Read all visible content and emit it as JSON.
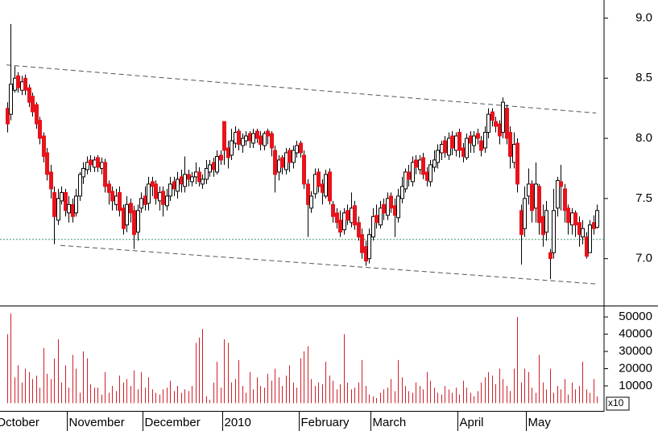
{
  "chart_data": [
    {
      "type": "candlestick",
      "open": [
        8.25,
        8.2,
        8.4,
        8.52,
        8.4,
        8.5,
        8.42,
        8.35,
        8.28,
        8.15,
        8.02,
        7.88,
        7.72,
        7.55,
        7.32,
        7.48,
        7.55,
        7.38,
        7.45,
        7.38,
        7.52,
        7.68,
        7.74,
        7.82,
        7.76,
        7.84,
        7.75,
        7.8,
        7.62,
        7.56,
        7.45,
        7.55,
        7.42,
        7.28,
        7.46,
        7.4,
        7.22,
        7.42,
        7.52,
        7.46,
        7.64,
        7.62,
        7.48,
        7.56,
        7.44,
        7.52,
        7.64,
        7.56,
        7.68,
        7.6,
        7.7,
        7.64,
        7.68,
        7.72,
        7.62,
        7.66,
        7.72,
        7.8,
        7.72,
        7.86,
        8.14,
        7.92,
        7.86,
        7.96,
        8.06,
        7.94,
        7.98,
        8.04,
        7.96,
        8.06,
        8.02,
        7.94,
        8.06,
        8.04,
        7.9,
        7.72,
        7.84,
        7.74,
        7.9,
        7.8,
        7.88,
        7.96,
        7.86,
        7.62,
        7.42,
        7.54,
        7.72,
        7.62,
        7.52,
        7.72,
        7.45,
        7.38,
        7.32,
        7.24,
        7.4,
        7.3,
        7.44,
        7.3,
        7.2,
        7.1,
        7.0,
        7.18,
        7.36,
        7.28,
        7.45,
        7.36,
        7.52,
        7.44,
        7.34,
        7.5,
        7.58,
        7.72,
        7.64,
        7.82,
        7.74,
        7.84,
        7.72,
        7.64,
        7.76,
        7.8,
        7.88,
        7.98,
        7.86,
        8.02,
        7.9,
        8.05,
        7.92,
        7.84,
        8.02,
        7.94,
        8.04,
        7.98,
        7.92,
        8.05,
        8.22,
        8.14,
        8.12,
        8.05,
        8.25,
        8.05,
        7.8,
        7.96,
        7.4,
        7.25,
        7.52,
        7.62,
        7.42,
        7.6,
        7.35,
        7.22,
        7.05,
        7.05,
        7.42,
        7.64,
        7.58,
        7.42,
        7.28,
        7.38,
        7.3,
        7.18,
        7.18,
        7.05,
        7.3,
        7.26
      ],
      "high": [
        8.3,
        8.95,
        8.6,
        8.55,
        8.52,
        8.53,
        8.45,
        8.38,
        8.3,
        8.18,
        8.05,
        7.92,
        7.78,
        7.6,
        7.58,
        7.6,
        7.58,
        7.52,
        7.5,
        7.58,
        7.72,
        7.8,
        7.85,
        7.86,
        7.85,
        7.86,
        7.84,
        7.83,
        7.65,
        7.6,
        7.58,
        7.6,
        7.45,
        7.52,
        7.5,
        7.44,
        7.45,
        7.55,
        7.6,
        7.68,
        7.68,
        7.65,
        7.6,
        7.6,
        7.58,
        7.68,
        7.68,
        7.72,
        7.74,
        7.85,
        7.74,
        7.72,
        7.8,
        7.76,
        7.7,
        7.82,
        7.82,
        7.84,
        7.9,
        7.9,
        8.14,
        7.98,
        8.08,
        8.1,
        8.08,
        8.04,
        8.06,
        8.06,
        8.08,
        8.08,
        8.06,
        8.06,
        8.08,
        8.06,
        7.94,
        7.86,
        7.86,
        7.92,
        7.92,
        7.94,
        7.98,
        7.98,
        7.9,
        7.66,
        7.56,
        7.75,
        7.75,
        7.66,
        7.74,
        7.75,
        7.48,
        7.42,
        7.4,
        7.42,
        7.45,
        7.55,
        7.48,
        7.35,
        7.25,
        7.15,
        7.25,
        7.42,
        7.45,
        7.48,
        7.5,
        7.55,
        7.55,
        7.5,
        7.58,
        7.68,
        7.75,
        7.78,
        7.85,
        7.86,
        7.86,
        7.88,
        7.76,
        7.82,
        7.9,
        7.95,
        7.98,
        8.02,
        8.05,
        8.06,
        8.05,
        8.08,
        7.96,
        8.04,
        8.06,
        8.06,
        8.08,
        8.02,
        8.1,
        8.25,
        8.25,
        8.18,
        8.15,
        8.34,
        8.28,
        8.1,
        8.05,
        8.0,
        7.45,
        7.6,
        7.75,
        7.65,
        7.8,
        7.62,
        7.45,
        7.48,
        7.08,
        7.58,
        7.68,
        7.78,
        7.62,
        7.45,
        7.42,
        7.4,
        7.35,
        7.32,
        7.22,
        7.32,
        7.36,
        7.45
      ],
      "low": [
        8.05,
        8.15,
        8.38,
        8.38,
        8.36,
        8.36,
        8.26,
        8.18,
        8.08,
        7.95,
        7.8,
        7.65,
        7.5,
        7.12,
        7.28,
        7.45,
        7.35,
        7.3,
        7.3,
        7.35,
        7.48,
        7.62,
        7.7,
        7.72,
        7.72,
        7.72,
        7.7,
        7.55,
        7.45,
        7.4,
        7.4,
        7.35,
        7.2,
        7.22,
        7.3,
        7.08,
        7.15,
        7.38,
        7.4,
        7.4,
        7.52,
        7.45,
        7.4,
        7.35,
        7.4,
        7.48,
        7.52,
        7.5,
        7.55,
        7.55,
        7.6,
        7.6,
        7.62,
        7.6,
        7.58,
        7.62,
        7.68,
        7.68,
        7.7,
        7.78,
        7.78,
        7.75,
        7.82,
        7.92,
        7.9,
        7.88,
        7.94,
        7.92,
        7.92,
        7.96,
        7.9,
        7.9,
        7.95,
        7.85,
        7.55,
        7.65,
        7.7,
        7.7,
        7.72,
        7.75,
        7.84,
        7.84,
        7.58,
        7.18,
        7.38,
        7.5,
        7.55,
        7.45,
        7.5,
        7.45,
        7.3,
        7.25,
        7.18,
        7.2,
        7.28,
        7.26,
        7.24,
        7.15,
        7.0,
        6.94,
        6.96,
        7.15,
        7.25,
        7.25,
        7.32,
        7.32,
        7.38,
        7.18,
        7.3,
        7.46,
        7.55,
        7.6,
        7.6,
        7.7,
        7.7,
        7.66,
        7.6,
        7.6,
        7.72,
        7.75,
        7.82,
        7.84,
        7.82,
        7.86,
        7.85,
        7.84,
        7.8,
        7.82,
        7.88,
        7.88,
        7.95,
        7.85,
        7.88,
        8.0,
        8.1,
        8.05,
        7.95,
        8.0,
        7.95,
        7.75,
        7.75,
        7.55,
        6.95,
        7.18,
        7.45,
        7.3,
        7.3,
        7.2,
        7.1,
        7.15,
        6.83,
        7.0,
        7.35,
        7.4,
        7.3,
        7.2,
        7.2,
        7.18,
        7.1,
        7.12,
        7.0,
        7.05,
        7.2,
        7.25
      ],
      "close": [
        8.12,
        8.45,
        8.5,
        8.42,
        8.47,
        8.4,
        8.3,
        8.22,
        8.12,
        8.0,
        7.85,
        7.7,
        7.58,
        7.35,
        7.5,
        7.55,
        7.4,
        7.45,
        7.35,
        7.52,
        7.7,
        7.75,
        7.8,
        7.78,
        7.82,
        7.76,
        7.8,
        7.6,
        7.55,
        7.48,
        7.52,
        7.4,
        7.25,
        7.45,
        7.38,
        7.2,
        7.4,
        7.5,
        7.45,
        7.62,
        7.6,
        7.5,
        7.55,
        7.45,
        7.52,
        7.62,
        7.58,
        7.66,
        7.62,
        7.7,
        7.66,
        7.68,
        7.72,
        7.64,
        7.66,
        7.75,
        7.78,
        7.74,
        7.85,
        7.82,
        7.9,
        7.84,
        7.98,
        8.05,
        7.95,
        8.0,
        8.02,
        7.98,
        8.04,
        8.0,
        7.95,
        8.04,
        8.02,
        7.92,
        7.7,
        7.82,
        7.76,
        7.88,
        7.8,
        7.9,
        7.94,
        7.88,
        7.62,
        7.45,
        7.52,
        7.7,
        7.6,
        7.55,
        7.7,
        7.48,
        7.35,
        7.3,
        7.22,
        7.38,
        7.32,
        7.42,
        7.28,
        7.18,
        7.05,
        6.98,
        7.2,
        7.35,
        7.3,
        7.42,
        7.38,
        7.5,
        7.42,
        7.36,
        7.52,
        7.6,
        7.72,
        7.66,
        7.8,
        7.76,
        7.82,
        7.7,
        7.65,
        7.78,
        7.82,
        7.9,
        7.95,
        7.88,
        8.0,
        7.92,
        8.02,
        7.9,
        7.85,
        8.0,
        7.96,
        8.02,
        8.0,
        7.9,
        8.05,
        8.2,
        8.15,
        8.1,
        8.02,
        8.3,
        8.0,
        7.85,
        7.95,
        7.62,
        7.2,
        7.5,
        7.62,
        7.4,
        7.62,
        7.3,
        7.2,
        7.4,
        7.0,
        7.4,
        7.65,
        7.6,
        7.4,
        7.3,
        7.38,
        7.28,
        7.2,
        7.25,
        7.02,
        7.28,
        7.25,
        7.4
      ],
      "up_color": "#ffffff",
      "down_color": "#e8131b",
      "wick_color": "#000000",
      "xlim": [
        -2,
        165
      ],
      "ylim": [
        6.61,
        9.15
      ],
      "yticks": [
        {
          "value": 7,
          "label": "7.0"
        },
        {
          "value": 7.5,
          "label": "7.5"
        },
        {
          "value": 8,
          "label": "8.0"
        },
        {
          "value": 8.5,
          "label": "8.5"
        },
        {
          "value": 9,
          "label": "9.0"
        }
      ],
      "trendlines": [
        {
          "x": [
            -0.2,
            162.8
          ],
          "y": [
            8.61,
            8.21
          ]
        },
        {
          "x": [
            14.7,
            162.8
          ],
          "y": [
            7.11,
            6.79
          ]
        }
      ],
      "trendline_color": "#555555",
      "hline": 7.16,
      "hline_color": "#3a9a6a"
    },
    {
      "type": "bar",
      "values": [
        40000,
        52000,
        15000,
        22000,
        12000,
        20000,
        18000,
        14000,
        16000,
        9000,
        32000,
        17000,
        14000,
        26000,
        37000,
        12000,
        22000,
        9000,
        28000,
        20000,
        6000,
        30000,
        26000,
        11000,
        9000,
        9000,
        5000,
        18000,
        6000,
        10000,
        7000,
        16000,
        12000,
        14000,
        10000,
        19000,
        8000,
        18000,
        9000,
        15000,
        8000,
        6000,
        5000,
        8000,
        9000,
        13000,
        7000,
        10000,
        6000,
        8000,
        7000,
        10000,
        35000,
        38000,
        43000,
        4000,
        2000,
        12000,
        24000,
        9000,
        37000,
        35000,
        12000,
        14000,
        25000,
        10000,
        6000,
        18000,
        8000,
        15000,
        10000,
        9000,
        17000,
        13000,
        20000,
        15000,
        10000,
        16000,
        22000,
        12000,
        9000,
        26000,
        30000,
        33000,
        14000,
        10000,
        12000,
        11000,
        24000,
        16000,
        13000,
        8000,
        11000,
        40000,
        12000,
        8000,
        9000,
        12000,
        25000,
        10000,
        5000,
        4000,
        3000,
        6000,
        8000,
        9000,
        14000,
        7000,
        25000,
        15000,
        10000,
        7000,
        6000,
        12000,
        10000,
        8000,
        18000,
        13000,
        9000,
        6000,
        5000,
        10000,
        8000,
        6000,
        9000,
        5000,
        13000,
        9000,
        6000,
        4000,
        7000,
        12000,
        15000,
        18000,
        16000,
        11000,
        20000,
        14000,
        10000,
        7000,
        20000,
        50000,
        12000,
        20000,
        18000,
        9000,
        6000,
        28000,
        12000,
        8000,
        20000,
        6000,
        10000,
        8000,
        14000,
        5000,
        12000,
        8000,
        10000,
        24000,
        8000,
        6000,
        14000,
        4000
      ],
      "color": "#d0202a",
      "xlim": [
        -2,
        165
      ],
      "ylim": [
        -4470,
        56120
      ],
      "yticks": [
        10000,
        20000,
        30000,
        40000,
        50000
      ],
      "unit_label": "x10",
      "xticks": [
        {
          "value": -3.5,
          "label": "October"
        },
        {
          "value": 16.5,
          "label": "November"
        },
        {
          "value": 37.5,
          "label": "December"
        },
        {
          "value": 59.5,
          "label": "2010"
        },
        {
          "value": 80.5,
          "label": "February"
        },
        {
          "value": 100.5,
          "label": "March"
        },
        {
          "value": 124.5,
          "label": "April"
        },
        {
          "value": 143.5,
          "label": "May"
        }
      ]
    }
  ]
}
